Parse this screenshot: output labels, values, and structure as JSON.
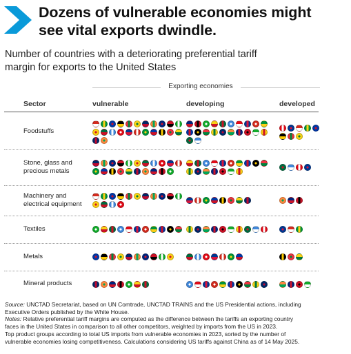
{
  "headline": {
    "line1": "Dozens of vulnerable economies might",
    "line2": "see vital exports dwindle."
  },
  "subtitle": {
    "line1": "Number of countries with a deteriorating preferential tariff",
    "line2": "margin for exports to the United States"
  },
  "brand_color": "#0a9ad9",
  "chart_data": {
    "type": "table",
    "group_label": "Exporting economies",
    "columns": [
      "Sector",
      "vulnerable",
      "developing",
      "developed"
    ],
    "rows": [
      {
        "sector_lines": [
          "Foodstuffs"
        ],
        "vulnerable": 24,
        "developing": 22,
        "developed": 8
      },
      {
        "sector_lines": [
          "Stone, glass and",
          "precious metals"
        ],
        "vulnerable": 21,
        "developing": 17,
        "developed": 4
      },
      {
        "sector_lines": [
          "Machinery and",
          "electrical equipment"
        ],
        "vulnerable": 15,
        "developing": 8,
        "developed": 3
      },
      {
        "sector_lines": [
          "Textiles"
        ],
        "vulnerable": 11,
        "developing": 10,
        "developed": 3
      },
      {
        "sector_lines": [
          "Metals"
        ],
        "vulnerable": 10,
        "developing": 7,
        "developed": 3
      },
      {
        "sector_lines": [
          "Mineral products"
        ],
        "vulnerable": 7,
        "developing": 10,
        "developed": 4
      }
    ],
    "marker": "country flag (circle)"
  },
  "flag_palette": [
    [
      "#d52b1e",
      "#ffffff"
    ],
    [
      "#009639",
      "#fcd116"
    ],
    [
      "#0038a8",
      "#ce1126"
    ],
    [
      "#000000",
      "#ffcc00"
    ],
    [
      "#ef3340",
      "#00843d"
    ],
    [
      "#f9d616",
      "#007a3d"
    ],
    [
      "#002868",
      "#bf0a30"
    ],
    [
      "#ff883e",
      "#00a859"
    ],
    [
      "#00247d",
      "#cf142b"
    ],
    [
      "#ce1126",
      "#000000"
    ],
    [
      "#12ad2b",
      "#ffffff"
    ],
    [
      "#fcd116",
      "#ce1126"
    ],
    [
      "#006b3f",
      "#ce1126"
    ],
    [
      "#4189dd",
      "#ffffff"
    ],
    [
      "#e30a17",
      "#ffffff"
    ],
    [
      "#003893",
      "#dc143c"
    ]
  ],
  "footer": {
    "source_label": "Source:",
    "source_line1": " UNCTAD Secretariat, based on UN Comtrade, UNCTAD TRAINS and the US Presidential actions, including",
    "source_line2": "Executive Orders published by the White House.",
    "notes_label": "Notes:",
    "notes_line1": " Relative preferential tariff margins are computed as the difference between the tariffs an exporting country",
    "notes_line2": "faces in the United States in comparison to all other competitors, weighted by imports from the US in 2023.",
    "notes_line3": "Top product groups according to total US imports from vulnerable economies in 2023, sorted by the number of",
    "notes_line4": "vulnerable economies losing competitiveness. Calculations considering US tariffs against China as of 14 May 2025."
  }
}
